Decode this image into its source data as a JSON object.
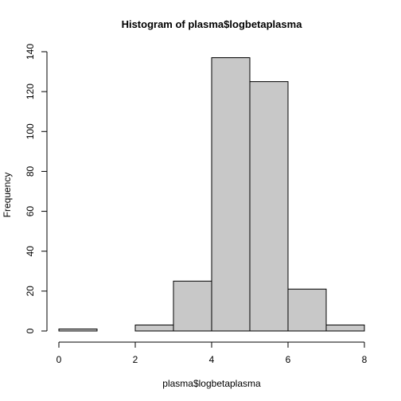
{
  "chart_data": {
    "type": "bar",
    "title": "Histogram of plasma$logbetaplasma",
    "xlabel": "plasma$logbetaplasma",
    "ylabel": "Frequency",
    "bins": [
      {
        "from": 0,
        "to": 1,
        "count": 1
      },
      {
        "from": 1,
        "to": 2,
        "count": 0
      },
      {
        "from": 2,
        "to": 3,
        "count": 3
      },
      {
        "from": 3,
        "to": 4,
        "count": 25
      },
      {
        "from": 4,
        "to": 5,
        "count": 137
      },
      {
        "from": 5,
        "to": 6,
        "count": 125
      },
      {
        "from": 6,
        "to": 7,
        "count": 21
      },
      {
        "from": 7,
        "to": 8,
        "count": 3
      }
    ],
    "xlim": [
      0,
      8
    ],
    "ylim": [
      0,
      140
    ],
    "x_ticks": [
      "0",
      "2",
      "4",
      "6",
      "8"
    ],
    "y_ticks": [
      "0",
      "20",
      "40",
      "60",
      "80",
      "100",
      "120",
      "140"
    ],
    "bar_color": "#c8c8c8",
    "grid": false,
    "legend": "none"
  }
}
